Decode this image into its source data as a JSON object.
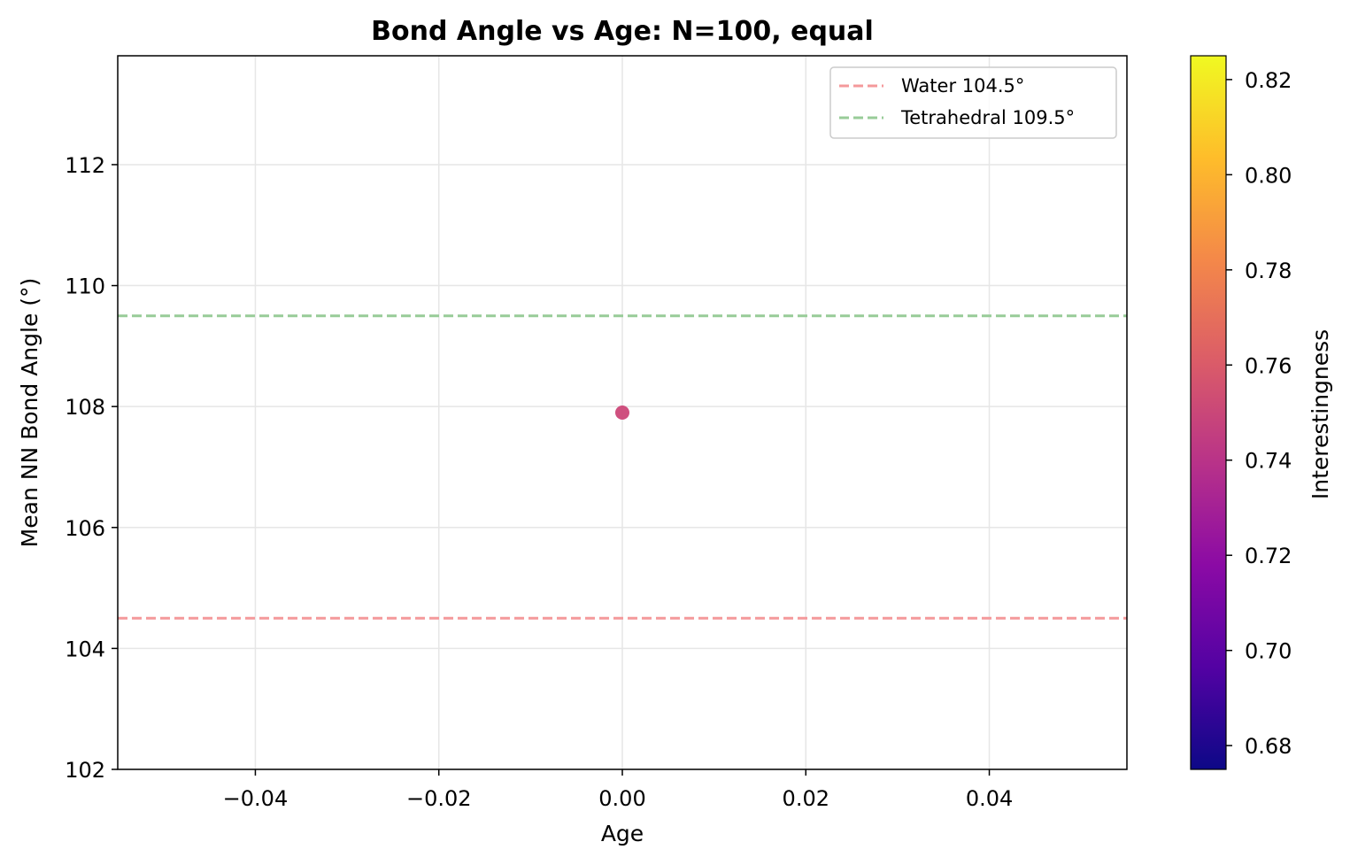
{
  "chart_data": {
    "type": "scatter",
    "title": "Bond Angle vs Age: N=100, equal",
    "xlabel": "Age",
    "ylabel": "Mean NN Bond Angle (°)",
    "xlim": [
      -0.055,
      0.055
    ],
    "ylim": [
      102,
      113.8
    ],
    "x_ticks": [
      -0.04,
      -0.02,
      0.0,
      0.02,
      0.04
    ],
    "x_tick_labels": [
      "−0.04",
      "−0.02",
      "0.00",
      "0.02",
      "0.04"
    ],
    "y_ticks": [
      102,
      104,
      106,
      108,
      110,
      112
    ],
    "y_tick_labels": [
      "102",
      "104",
      "106",
      "108",
      "110",
      "112"
    ],
    "grid": true,
    "points": [
      {
        "x": 0.0,
        "y": 107.9,
        "interestingness": 0.75,
        "color": "#cc4778"
      }
    ],
    "reference_lines": [
      {
        "name": "Water 104.5°",
        "y": 104.5,
        "color": "#f4999b",
        "style": "dashed"
      },
      {
        "name": "Tetrahedral 109.5°",
        "y": 109.5,
        "color": "#98cc98",
        "style": "dashed"
      }
    ],
    "legend": {
      "position": "top-right",
      "entries": [
        "Water 104.5°",
        "Tetrahedral 109.5°"
      ]
    },
    "colorbar": {
      "label": "Interestingness",
      "colormap": "plasma",
      "range": [
        0.675,
        0.825
      ],
      "ticks": [
        0.68,
        0.7,
        0.72,
        0.74,
        0.76,
        0.78,
        0.8,
        0.82
      ],
      "tick_labels": [
        "0.68",
        "0.70",
        "0.72",
        "0.74",
        "0.76",
        "0.78",
        "0.80",
        "0.82"
      ],
      "stops": [
        "#0d0887",
        "#5302a3",
        "#8b0aa5",
        "#b83289",
        "#db5c68",
        "#f48849",
        "#febd2a",
        "#f0f921"
      ]
    }
  }
}
